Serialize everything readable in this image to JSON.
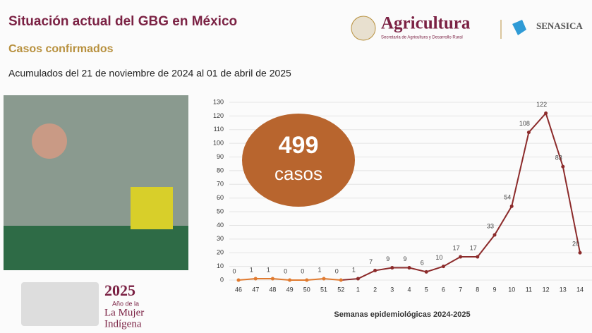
{
  "header": {
    "title": "Situación actual del GBG en México",
    "subtitle": "Casos confirmados",
    "date_range": "Acumulados del 21 de noviembre de 2024 al 01 de abril de 2025"
  },
  "logos": {
    "name": "Agricultura",
    "subtitle": "Secretaría de Agricultura y Desarrollo Rural",
    "agency": "SENASICA"
  },
  "summary": {
    "count": 499,
    "label": "casos"
  },
  "footer": {
    "year": "2025",
    "line1": "Año de la",
    "line2": "La Mujer",
    "line3": "Indígena"
  },
  "chart_data": {
    "type": "line",
    "x_label": "Semanas epidemiológicas 2024-2025",
    "categories": [
      "46",
      "47",
      "48",
      "49",
      "50",
      "51",
      "52",
      "1",
      "2",
      "3",
      "4",
      "5",
      "6",
      "7",
      "8",
      "9",
      "10",
      "11",
      "12",
      "13",
      "14"
    ],
    "series": [
      {
        "color": "#e07a2f",
        "values": [
          0,
          1,
          1,
          0,
          0,
          1,
          0,
          null,
          null,
          null,
          null,
          null,
          null,
          null,
          null,
          null,
          null,
          null,
          null,
          null,
          null
        ]
      },
      {
        "color": "#8c2b2b",
        "values": [
          null,
          null,
          null,
          null,
          null,
          null,
          null,
          1,
          7,
          9,
          9,
          6,
          10,
          17,
          17,
          33,
          54,
          108,
          122,
          83,
          20
        ]
      }
    ],
    "ylim": [
      0,
      130
    ],
    "yticks": [
      0,
      10,
      20,
      30,
      40,
      50,
      60,
      70,
      80,
      90,
      100,
      110,
      120,
      130
    ],
    "grid": true
  }
}
